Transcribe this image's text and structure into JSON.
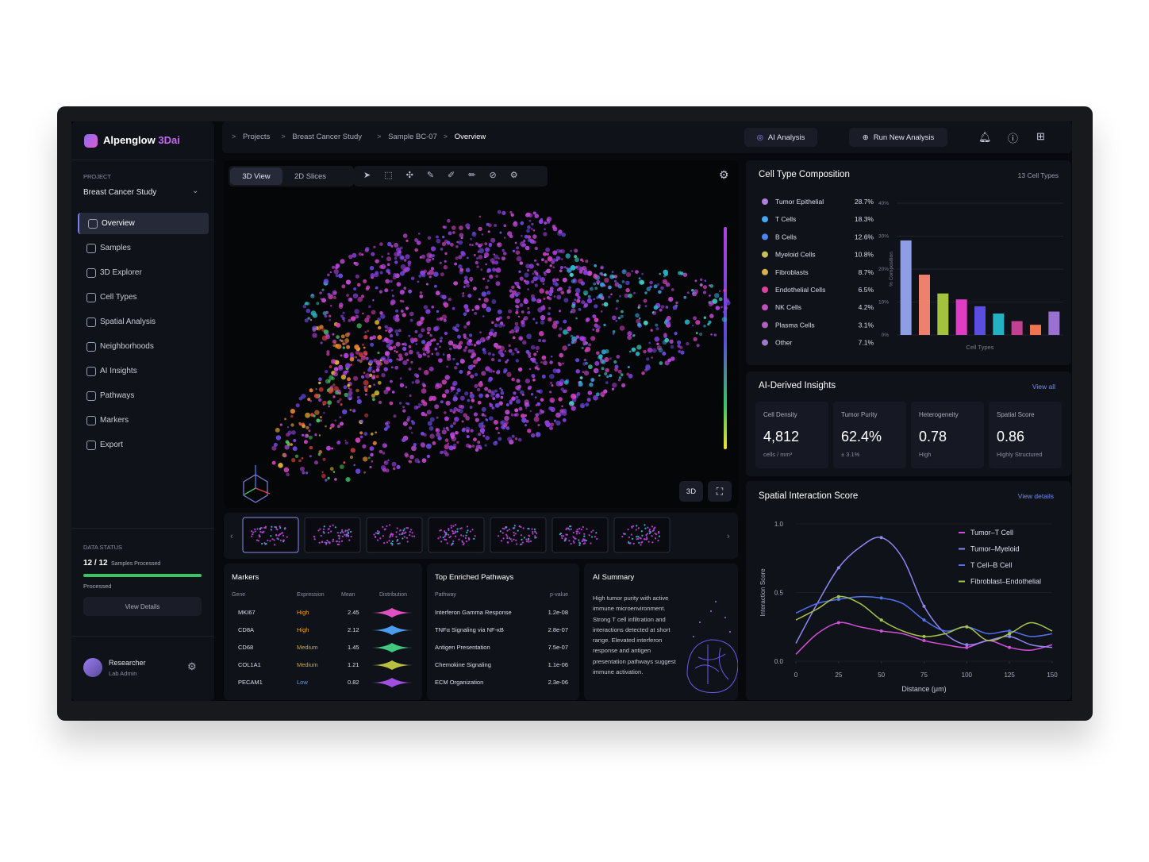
{
  "sidebar": {
    "brand": "Alpenglow",
    "brand_accent": "3Dai",
    "project_label": "PROJECT",
    "project": "Breast Cancer Study",
    "nav": [
      "Overview",
      "Samples",
      "3D Explorer",
      "Cell Types",
      "Spatial Analysis",
      "Neighborhoods",
      "AI Insights",
      "Pathways",
      "Markers",
      "Export"
    ],
    "data_status_label": "DATA STATUS",
    "samples_count": "12 / 12",
    "samples_caption": "Samples Processed",
    "status_text": "Processed",
    "view_details": "View Details",
    "user_name": "Researcher",
    "user_role": "Lab Admin"
  },
  "topbar": {
    "breadcrumbs": [
      "Projects",
      "Breast Cancer Study",
      "Sample BC-07",
      "Overview"
    ],
    "ai_analysis": "AI Analysis",
    "run_analysis": "Run New Analysis"
  },
  "viewer": {
    "tabs": [
      "3D View",
      "2D Slices"
    ],
    "mode_button": "3D"
  },
  "markers": {
    "title": "Markers",
    "columns": [
      "Gene",
      "Expression",
      "Mean",
      "Distribution"
    ],
    "rows": [
      [
        "MKI67",
        "High",
        "2.45"
      ],
      [
        "CD8A",
        "High",
        "2.12"
      ],
      [
        "CD68",
        "Medium",
        "1.45"
      ],
      [
        "COL1A1",
        "Medium",
        "1.21"
      ],
      [
        "PECAM1",
        "Low",
        "0.82"
      ]
    ]
  },
  "pathways": {
    "title": "Top Enriched Pathways",
    "columns": [
      "Pathway",
      "p-value"
    ],
    "rows": [
      [
        "Interferon Gamma Response",
        "1.2e-08"
      ],
      [
        "TNFα Signaling via NF-κB",
        "2.8e-07"
      ],
      [
        "Antigen Presentation",
        "7.5e-07"
      ],
      [
        "Chemokine Signaling",
        "1.1e-06"
      ],
      [
        "ECM Organization",
        "2.3e-06"
      ]
    ]
  },
  "ai_summary": {
    "title": "AI Summary",
    "text": "High tumor purity with active immune microenvironment. Strong T cell infiltration and interactions detected at short range. Elevated interferon response and antigen presentation pathways suggest immune activation."
  },
  "cell_composition": {
    "title": "Cell Type Composition",
    "count_label": "13 Cell Types",
    "chart": {
      "type": "bar",
      "categories": [
        "Tumor Epithelial",
        "T Cells",
        "B Cells",
        "Myeloid Cells",
        "Fibroblasts",
        "Endothelial Cells",
        "NK Cells",
        "Plasma Cells",
        "Other"
      ],
      "values": [
        28.7,
        18.3,
        12.6,
        10.8,
        8.7,
        6.5,
        4.2,
        3.1,
        7.1
      ],
      "value_labels": [
        "28.7%",
        "18.3%",
        "12.6%",
        "10.8%",
        "8.7%",
        "6.5%",
        "4.2%",
        "3.1%",
        "7.1%"
      ],
      "legend_colors": [
        "#b07ee0",
        "#3fa9f5",
        "#4a86f0",
        "#c8bf5a",
        "#d8b04e",
        "#e0409e",
        "#c050c0",
        "#b060c0",
        "#a078c8"
      ],
      "bar_colors": [
        "#8c9ee6",
        "#f0806e",
        "#a4c23e",
        "#e03cc4",
        "#5a4ee0",
        "#22b2c4",
        "#c24092",
        "#f07452",
        "#9a70d0"
      ],
      "ylim": [
        0,
        40
      ],
      "yticks": [
        {
          "value": 0,
          "label": "0%"
        },
        {
          "value": 10,
          "label": "10%"
        },
        {
          "value": 20,
          "label": "20%"
        },
        {
          "value": 30,
          "label": "30%"
        },
        {
          "value": 40,
          "label": "40%"
        }
      ],
      "ylabel": "% Composition",
      "xlabel": "Cell Types"
    }
  },
  "insights": {
    "title": "AI-Derived Insights",
    "view_all": "View all",
    "cards": [
      {
        "label": "Cell Density",
        "value": "4,812",
        "caption": "cells / mm³"
      },
      {
        "label": "Tumor Purity",
        "value": "62.4%",
        "caption": "± 3.1%"
      },
      {
        "label": "Heterogeneity",
        "value": "0.78",
        "caption": "High"
      },
      {
        "label": "Spatial Score",
        "value": "0.86",
        "caption": "Highly Structured"
      }
    ]
  },
  "interaction": {
    "title": "Spatial Interaction Score",
    "view_details": "View details",
    "chart": {
      "type": "line",
      "x": [
        0,
        12.5,
        25,
        37.5,
        50,
        62.5,
        75,
        87.5,
        100,
        112.5,
        125,
        137.5,
        150
      ],
      "series": [
        {
          "name": "Tumor–T Cell",
          "color": "#d24fd8",
          "values": [
            0.05,
            0.2,
            0.28,
            0.25,
            0.22,
            0.2,
            0.15,
            0.12,
            0.1,
            0.15,
            0.1,
            0.08,
            0.12
          ]
        },
        {
          "name": "Tumor–Myeloid",
          "color": "#8f86f2",
          "values": [
            0.13,
            0.42,
            0.68,
            0.83,
            0.9,
            0.75,
            0.4,
            0.2,
            0.12,
            0.15,
            0.18,
            0.12,
            0.1
          ]
        },
        {
          "name": "T Cell–B Cell",
          "color": "#4f72ee",
          "values": [
            0.35,
            0.42,
            0.45,
            0.47,
            0.46,
            0.42,
            0.3,
            0.22,
            0.25,
            0.2,
            0.22,
            0.18,
            0.2
          ]
        },
        {
          "name": "Fibroblast–Endothelial",
          "color": "#a6c24a",
          "values": [
            0.3,
            0.38,
            0.47,
            0.42,
            0.3,
            0.22,
            0.18,
            0.2,
            0.25,
            0.15,
            0.2,
            0.28,
            0.22
          ]
        }
      ],
      "xlim": [
        0,
        150
      ],
      "xticks": [
        0,
        25,
        50,
        75,
        100,
        125,
        150
      ],
      "ylim": [
        0,
        1
      ],
      "yticks": [
        {
          "value": 0,
          "label": "0.0"
        },
        {
          "value": 0.5,
          "label": "0.5"
        },
        {
          "value": 1,
          "label": "1.0"
        }
      ],
      "xlabel": "Distance (μm)",
      "ylabel": "Interaction Score"
    }
  }
}
